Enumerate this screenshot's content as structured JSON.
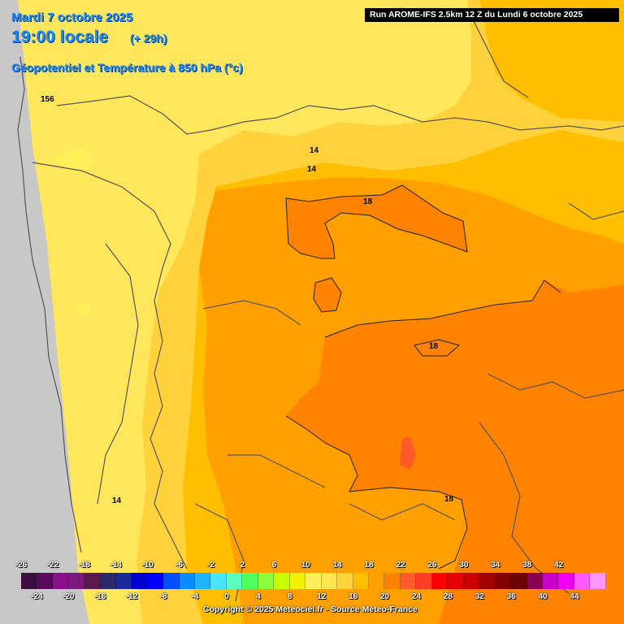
{
  "header": {
    "date": "Mardi 7 octobre 2025",
    "local_time": "19:00 locale",
    "lead_time": "(+ 29h)",
    "parameter": "Géopotentiel et Température à 850 hPa (°c)",
    "run_info": "Run AROME-IFS 2.5km 12 Z du Lundi 6 octobre 2025"
  },
  "contour_labels": [
    "156",
    "14",
    "14",
    "18",
    "18",
    "14",
    "18"
  ],
  "legend": {
    "upper_ticks": [
      "-26",
      "-22",
      "-18",
      "-14",
      "-10",
      "-6",
      "-2",
      "2",
      "6",
      "10",
      "14",
      "18",
      "22",
      "26",
      "30",
      "34",
      "38",
      "42"
    ],
    "lower_ticks": [
      "-24",
      "-20",
      "-16",
      "-12",
      "-8",
      "-4",
      "0",
      "4",
      "8",
      "12",
      "16",
      "20",
      "24",
      "28",
      "32",
      "36",
      "40",
      "44"
    ],
    "colors": [
      "#3d0f3f",
      "#5a0a5a",
      "#8a0f8a",
      "#7a1a7a",
      "#5a1a50",
      "#2a2a6a",
      "#1a2a9a",
      "#0000cc",
      "#0000ff",
      "#0050ff",
      "#0a8cff",
      "#20b4ff",
      "#46e6ff",
      "#5affc0",
      "#50ff60",
      "#8cff3a",
      "#c8ff00",
      "#f0f000",
      "#fff05a",
      "#ffe650",
      "#ffd23c",
      "#ffbe00",
      "#ffa000",
      "#ff8200",
      "#ff5a28",
      "#ff3c28",
      "#ff0000",
      "#e60000",
      "#c80000",
      "#a00000",
      "#820000",
      "#6e0000",
      "#8c0050",
      "#c800c8",
      "#f000f0",
      "#ff5aff",
      "#ff96ff"
    ]
  },
  "copyright": "Copyright © 2025 Meteociel.fr - Source Meteo-France"
}
